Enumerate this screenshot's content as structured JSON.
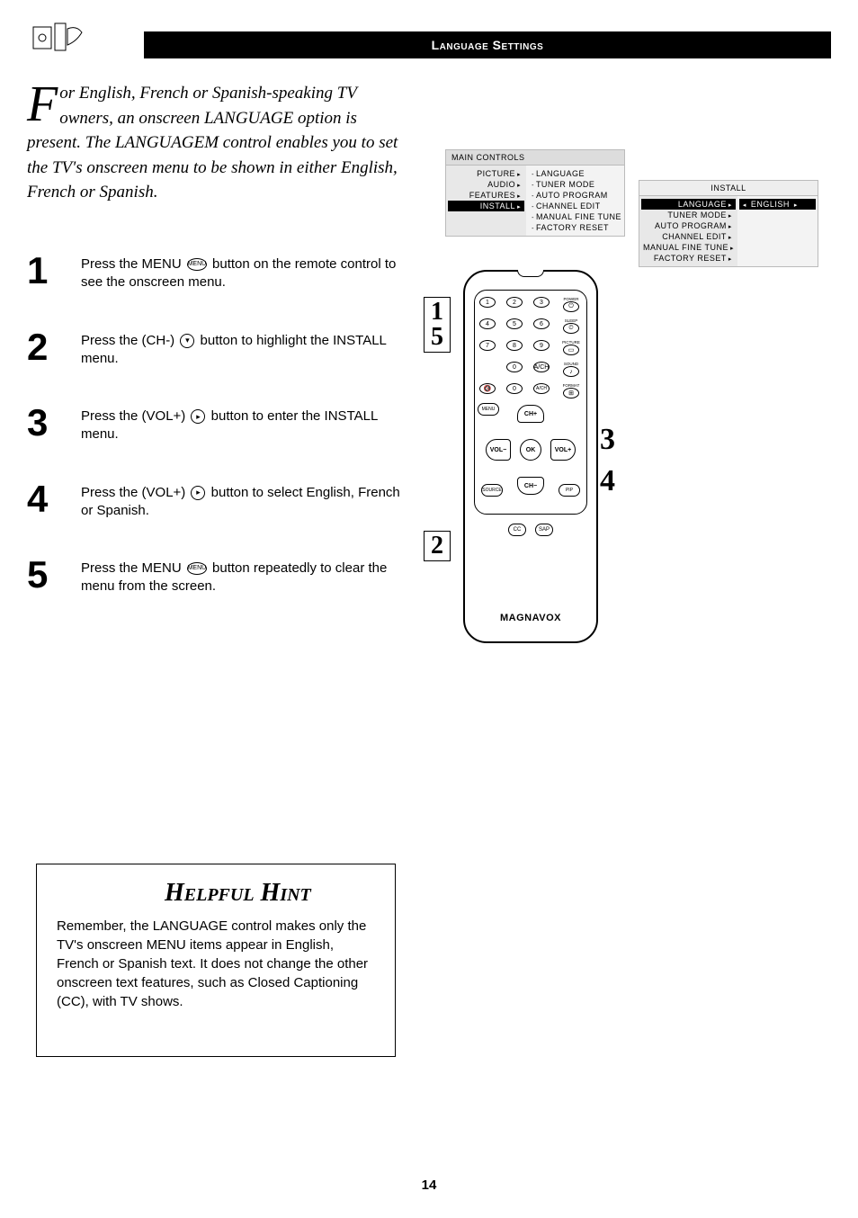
{
  "header": {
    "title": "Language Settings"
  },
  "intro": {
    "dropcap": "F",
    "text": "or English, French or Spanish-speaking TV owners, an onscreen LANGUAGE option is present. The LANGUAGEM control enables you to set the TV's onscreen menu to be shown in either English, French or Spanish."
  },
  "steps": [
    {
      "n": "1",
      "pre": "Press the MENU ",
      "icon": "MENU",
      "shape": "oval",
      "post": " button on the remote control to see the onscreen menu."
    },
    {
      "n": "2",
      "pre": "Press the (CH-) ",
      "icon": "▾",
      "shape": "round",
      "post": " button to highlight the INSTALL menu."
    },
    {
      "n": "3",
      "pre": "Press the (VOL+) ",
      "icon": "▸",
      "shape": "round",
      "post": " button to enter the INSTALL menu."
    },
    {
      "n": "4",
      "pre": "Press the (VOL+) ",
      "icon": "▸",
      "shape": "round",
      "post": " button to select English, French or Spanish."
    },
    {
      "n": "5",
      "pre": "Press the MENU ",
      "icon": "MENU",
      "shape": "oval",
      "post": " button repeatedly to clear the menu from the screen."
    }
  ],
  "osd_main": {
    "title": "MAIN CONTROLS",
    "left": [
      "PICTURE",
      "AUDIO",
      "FEATURES",
      "INSTALL"
    ],
    "left_hl_index": 3,
    "right": [
      "LANGUAGE",
      "TUNER MODE",
      "AUTO PROGRAM",
      "CHANNEL EDIT",
      "MANUAL FINE TUNE",
      "FACTORY RESET"
    ]
  },
  "osd_install": {
    "title": "INSTALL",
    "left": [
      "LANGUAGE",
      "TUNER MODE",
      "AUTO PROGRAM",
      "CHANNEL EDIT",
      "MANUAL FINE TUNE",
      "FACTORY RESET"
    ],
    "left_hl_index": 0,
    "right_value": "ENGLISH"
  },
  "remote": {
    "numpad": [
      "1",
      "2",
      "3",
      "4",
      "5",
      "6",
      "7",
      "8",
      "9",
      "",
      "0",
      "A/CH"
    ],
    "side_labels": [
      "POWER",
      "SLEEP",
      "PICTURE",
      "SOUND",
      "FORMAT"
    ],
    "side_icons": [
      "⏻",
      "⏲",
      "▭",
      "♪",
      "⊞"
    ],
    "mute": "MUTE",
    "mute_icon": "🔇",
    "menu": "MENU",
    "source": "SOURCE",
    "pip": "PIP",
    "ch_plus": "CH+",
    "ch_minus": "CH−",
    "vol_plus": "VOL+",
    "vol_minus": "VOL−",
    "ok": "OK",
    "cc": "CC",
    "sap": "SAP",
    "brand": "MAGNAVOX"
  },
  "callouts": {
    "box_15": [
      "1",
      "5"
    ],
    "box_2": "2",
    "n3": "3",
    "n4": "4"
  },
  "hint": {
    "title": "Helpful Hint",
    "text": "Remember, the LANGUAGE control makes only the TV's onscreen MENU items appear in English, French or Spanish text. It does not change the other onscreen text features, such as Closed Captioning (CC), with TV shows."
  },
  "page_number": "14"
}
